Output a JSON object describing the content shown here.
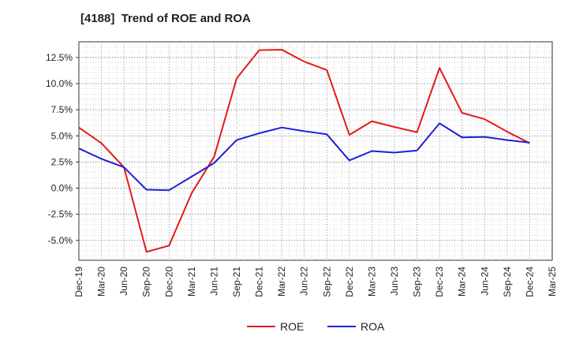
{
  "title": "[4188]  Trend of ROE and ROA",
  "chart_data": {
    "type": "line",
    "x": [
      "Dec-19",
      "Mar-20",
      "Jun-20",
      "Sep-20",
      "Dec-20",
      "Mar-21",
      "Jun-21",
      "Sep-21",
      "Dec-21",
      "Mar-22",
      "Jun-22",
      "Sep-22",
      "Dec-22",
      "Mar-23",
      "Jun-23",
      "Sep-23",
      "Dec-23",
      "Mar-24",
      "Jun-24",
      "Sep-24",
      "Dec-24",
      "Mar-25"
    ],
    "x_tick_labels": [
      "Dec-19",
      "Mar-20",
      "Jun-20",
      "Sep-20",
      "Dec-20",
      "Mar-21",
      "Jun-21",
      "Sep-21",
      "Dec-21",
      "Mar-22",
      "Jun-22",
      "Sep-22",
      "Dec-22",
      "Mar-23",
      "Jun-23",
      "Sep-23",
      "Dec-23",
      "Mar-24",
      "Jun-24",
      "Sep-24",
      "Dec-24",
      "Mar-25"
    ],
    "y_tick_values": [
      12.5,
      10.0,
      7.5,
      5.0,
      2.5,
      0.0,
      -2.5,
      -5.0
    ],
    "y_tick_labels": [
      "12.5%",
      "10.0%",
      "7.5%",
      "5.0%",
      "2.5%",
      "0.0%",
      "-2.5%",
      "-5.0%"
    ],
    "ylim": [
      -6.9,
      14.0
    ],
    "grid": true,
    "legend_position": "bottom",
    "series": [
      {
        "name": "ROE",
        "color": "#e31a1c",
        "values": [
          5.8,
          4.3,
          2.0,
          -6.1,
          -5.5,
          -0.5,
          3.0,
          10.5,
          13.2,
          13.25,
          12.1,
          11.3,
          5.1,
          6.4,
          5.85,
          5.35,
          11.5,
          7.2,
          6.6,
          5.4,
          4.3,
          null
        ]
      },
      {
        "name": "ROA",
        "color": "#1f1fd6",
        "values": [
          3.8,
          2.8,
          2.0,
          -0.15,
          -0.2,
          1.1,
          2.4,
          4.6,
          5.25,
          5.8,
          5.45,
          5.15,
          2.65,
          3.55,
          3.4,
          3.6,
          6.2,
          4.85,
          4.9,
          4.6,
          4.35,
          null
        ]
      }
    ]
  }
}
